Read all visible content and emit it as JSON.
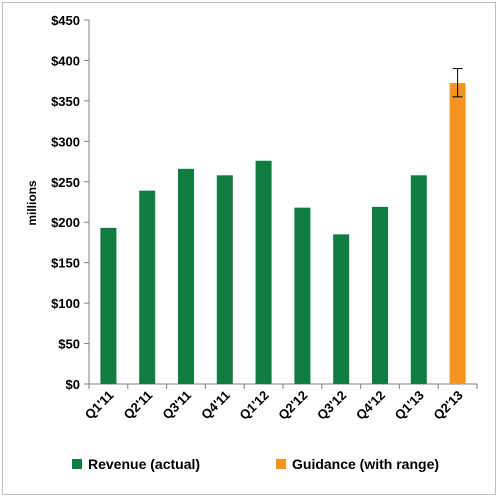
{
  "chart_data": {
    "type": "bar",
    "categories": [
      "Q1'11",
      "Q2'11",
      "Q3'11",
      "Q4'11",
      "Q1'12",
      "Q2'12",
      "Q3'12",
      "Q4'12",
      "Q1'13",
      "Q2'13"
    ],
    "series": [
      {
        "name": "Revenue (actual)",
        "color": "#0e7d3f",
        "values": [
          193,
          239,
          266,
          258,
          276,
          218,
          185,
          219,
          258,
          null
        ]
      },
      {
        "name": "Guidance (with range)",
        "color": "#f7941d",
        "values": [
          null,
          null,
          null,
          null,
          null,
          null,
          null,
          null,
          null,
          372
        ],
        "error_range": [
          355,
          390
        ]
      }
    ],
    "ylabel": "millions",
    "ylim": [
      0,
      450
    ],
    "yticks": [
      "$0",
      "$50",
      "$100",
      "$150",
      "$200",
      "$250",
      "$300",
      "$350",
      "$400",
      "$450"
    ],
    "ytick_values": [
      0,
      50,
      100,
      150,
      200,
      250,
      300,
      350,
      400,
      450
    ],
    "legend_position": "bottom",
    "grid": false
  }
}
